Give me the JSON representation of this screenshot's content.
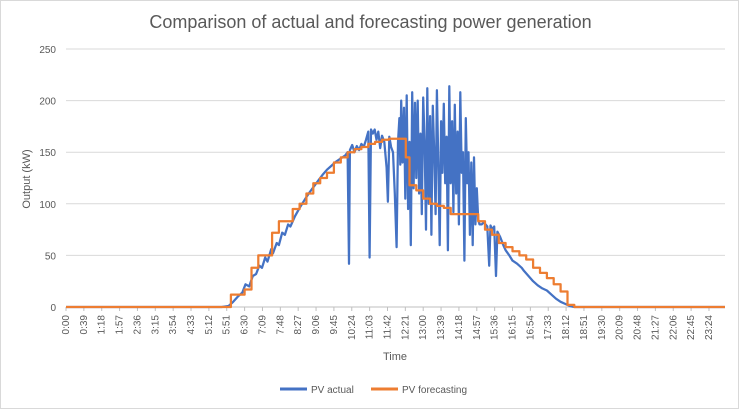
{
  "chart_data": {
    "type": "line",
    "title": "Comparison of actual and forecasting power generation",
    "xlabel": "Time",
    "ylabel": "Output (kW)",
    "ylim": [
      0,
      250
    ],
    "yticks": [
      0,
      50,
      100,
      150,
      200,
      250
    ],
    "xlim": [
      0,
      1439
    ],
    "grid": "horizontal",
    "legend_position": "bottom",
    "x_tick_labels": [
      "0:00",
      "0:39",
      "1:18",
      "1:57",
      "2:36",
      "3:15",
      "3:54",
      "4:33",
      "5:12",
      "5:51",
      "6:30",
      "7:09",
      "7:48",
      "8:27",
      "9:06",
      "9:45",
      "10:24",
      "11:03",
      "11:42",
      "12:21",
      "13:00",
      "13:39",
      "14:18",
      "14:57",
      "15:36",
      "16:15",
      "16:54",
      "17:33",
      "18:12",
      "18:51",
      "19:30",
      "20:09",
      "20:48",
      "21:27",
      "22:06",
      "22:45",
      "23:24"
    ],
    "x_tick_step_minutes": 39,
    "series": [
      {
        "name": "PV actual",
        "color": "#4472C4",
        "points": [
          [
            0,
            0
          ],
          [
            340,
            0
          ],
          [
            355,
            1
          ],
          [
            365,
            5
          ],
          [
            375,
            10
          ],
          [
            385,
            14
          ],
          [
            392,
            22
          ],
          [
            400,
            20
          ],
          [
            408,
            30
          ],
          [
            415,
            32
          ],
          [
            422,
            40
          ],
          [
            428,
            38
          ],
          [
            435,
            48
          ],
          [
            440,
            44
          ],
          [
            448,
            56
          ],
          [
            452,
            52
          ],
          [
            460,
            62
          ],
          [
            465,
            60
          ],
          [
            472,
            72
          ],
          [
            478,
            70
          ],
          [
            485,
            80
          ],
          [
            490,
            78
          ],
          [
            500,
            88
          ],
          [
            510,
            96
          ],
          [
            520,
            103
          ],
          [
            530,
            110
          ],
          [
            540,
            116
          ],
          [
            550,
            122
          ],
          [
            560,
            128
          ],
          [
            570,
            133
          ],
          [
            580,
            137
          ],
          [
            590,
            141
          ],
          [
            600,
            144
          ],
          [
            610,
            147
          ],
          [
            615,
            150
          ],
          [
            618,
            42
          ],
          [
            620,
            152
          ],
          [
            625,
            157
          ],
          [
            630,
            150
          ],
          [
            635,
            156
          ],
          [
            640,
            152
          ],
          [
            645,
            158
          ],
          [
            650,
            155
          ],
          [
            655,
            162
          ],
          [
            660,
            170
          ],
          [
            663,
            48
          ],
          [
            666,
            172
          ],
          [
            670,
            168
          ],
          [
            674,
            172
          ],
          [
            678,
            162
          ],
          [
            682,
            170
          ],
          [
            686,
            154
          ],
          [
            690,
            166
          ],
          [
            695,
            160
          ],
          [
            700,
            135
          ],
          [
            703,
            102
          ],
          [
            706,
            165
          ],
          [
            710,
            155
          ],
          [
            714,
            150
          ],
          [
            718,
            110
          ],
          [
            722,
            58
          ],
          [
            725,
            160
          ],
          [
            728,
            183
          ],
          [
            730,
            138
          ],
          [
            732,
            200
          ],
          [
            735,
            140
          ],
          [
            738,
            193
          ],
          [
            741,
            105
          ],
          [
            744,
            205
          ],
          [
            747,
            95
          ],
          [
            750,
            160
          ],
          [
            753,
            60
          ],
          [
            756,
            208
          ],
          [
            759,
            115
          ],
          [
            762,
            198
          ],
          [
            765,
            125
          ],
          [
            768,
            200
          ],
          [
            771,
            110
          ],
          [
            774,
            168
          ],
          [
            777,
            90
          ],
          [
            780,
            203
          ],
          [
            783,
            160
          ],
          [
            786,
            75
          ],
          [
            789,
            212
          ],
          [
            792,
            100
          ],
          [
            795,
            185
          ],
          [
            798,
            70
          ],
          [
            801,
            195
          ],
          [
            804,
            150
          ],
          [
            807,
            90
          ],
          [
            810,
            210
          ],
          [
            813,
            140
          ],
          [
            816,
            60
          ],
          [
            819,
            180
          ],
          [
            822,
            130
          ],
          [
            825,
            197
          ],
          [
            828,
            120
          ],
          [
            831,
            165
          ],
          [
            834,
            55
          ],
          [
            837,
            214
          ],
          [
            840,
            120
          ],
          [
            843,
            180
          ],
          [
            846,
            92
          ],
          [
            849,
            196
          ],
          [
            852,
            110
          ],
          [
            855,
            170
          ],
          [
            858,
            80
          ],
          [
            861,
            208
          ],
          [
            864,
            130
          ],
          [
            867,
            150
          ],
          [
            870,
            45
          ],
          [
            873,
            183
          ],
          [
            876,
            120
          ],
          [
            879,
            150
          ],
          [
            882,
            70
          ],
          [
            885,
            140
          ],
          [
            888,
            60
          ],
          [
            891,
            145
          ],
          [
            894,
            80
          ],
          [
            897,
            115
          ],
          [
            900,
            85
          ],
          [
            903,
            80
          ],
          [
            908,
            80
          ],
          [
            912,
            82
          ],
          [
            916,
            80
          ],
          [
            920,
            78
          ],
          [
            924,
            40
          ],
          [
            927,
            79
          ],
          [
            931,
            75
          ],
          [
            935,
            78
          ],
          [
            939,
            30
          ],
          [
            942,
            73
          ],
          [
            948,
            68
          ],
          [
            955,
            60
          ],
          [
            960,
            55
          ],
          [
            968,
            50
          ],
          [
            975,
            45
          ],
          [
            985,
            42
          ],
          [
            995,
            38
          ],
          [
            1000,
            35
          ],
          [
            1010,
            30
          ],
          [
            1020,
            25
          ],
          [
            1030,
            21
          ],
          [
            1040,
            18
          ],
          [
            1050,
            16
          ],
          [
            1060,
            12
          ],
          [
            1070,
            8
          ],
          [
            1080,
            5
          ],
          [
            1090,
            3
          ],
          [
            1100,
            1
          ],
          [
            1110,
            0
          ],
          [
            1439,
            0
          ]
        ]
      },
      {
        "name": "PV forecasting",
        "color": "#ED7D31",
        "steps": [
          [
            0,
            0
          ],
          [
            345,
            0
          ],
          [
            360,
            12
          ],
          [
            390,
            17
          ],
          [
            405,
            38
          ],
          [
            420,
            50
          ],
          [
            450,
            72
          ],
          [
            465,
            83
          ],
          [
            495,
            95
          ],
          [
            510,
            100
          ],
          [
            525,
            110
          ],
          [
            540,
            120
          ],
          [
            555,
            125
          ],
          [
            570,
            130
          ],
          [
            585,
            140
          ],
          [
            600,
            145
          ],
          [
            615,
            150
          ],
          [
            630,
            153
          ],
          [
            645,
            155
          ],
          [
            660,
            158
          ],
          [
            675,
            160
          ],
          [
            690,
            162
          ],
          [
            705,
            163
          ],
          [
            735,
            163
          ],
          [
            742,
            145
          ],
          [
            750,
            118
          ],
          [
            765,
            113
          ],
          [
            780,
            105
          ],
          [
            795,
            100
          ],
          [
            810,
            98
          ],
          [
            825,
            96
          ],
          [
            840,
            90
          ],
          [
            885,
            90
          ],
          [
            900,
            83
          ],
          [
            915,
            75
          ],
          [
            930,
            70
          ],
          [
            945,
            62
          ],
          [
            960,
            58
          ],
          [
            975,
            54
          ],
          [
            990,
            50
          ],
          [
            1005,
            46
          ],
          [
            1020,
            38
          ],
          [
            1035,
            33
          ],
          [
            1050,
            28
          ],
          [
            1065,
            22
          ],
          [
            1080,
            15
          ],
          [
            1095,
            2
          ],
          [
            1110,
            0
          ],
          [
            1439,
            0
          ]
        ]
      }
    ]
  }
}
